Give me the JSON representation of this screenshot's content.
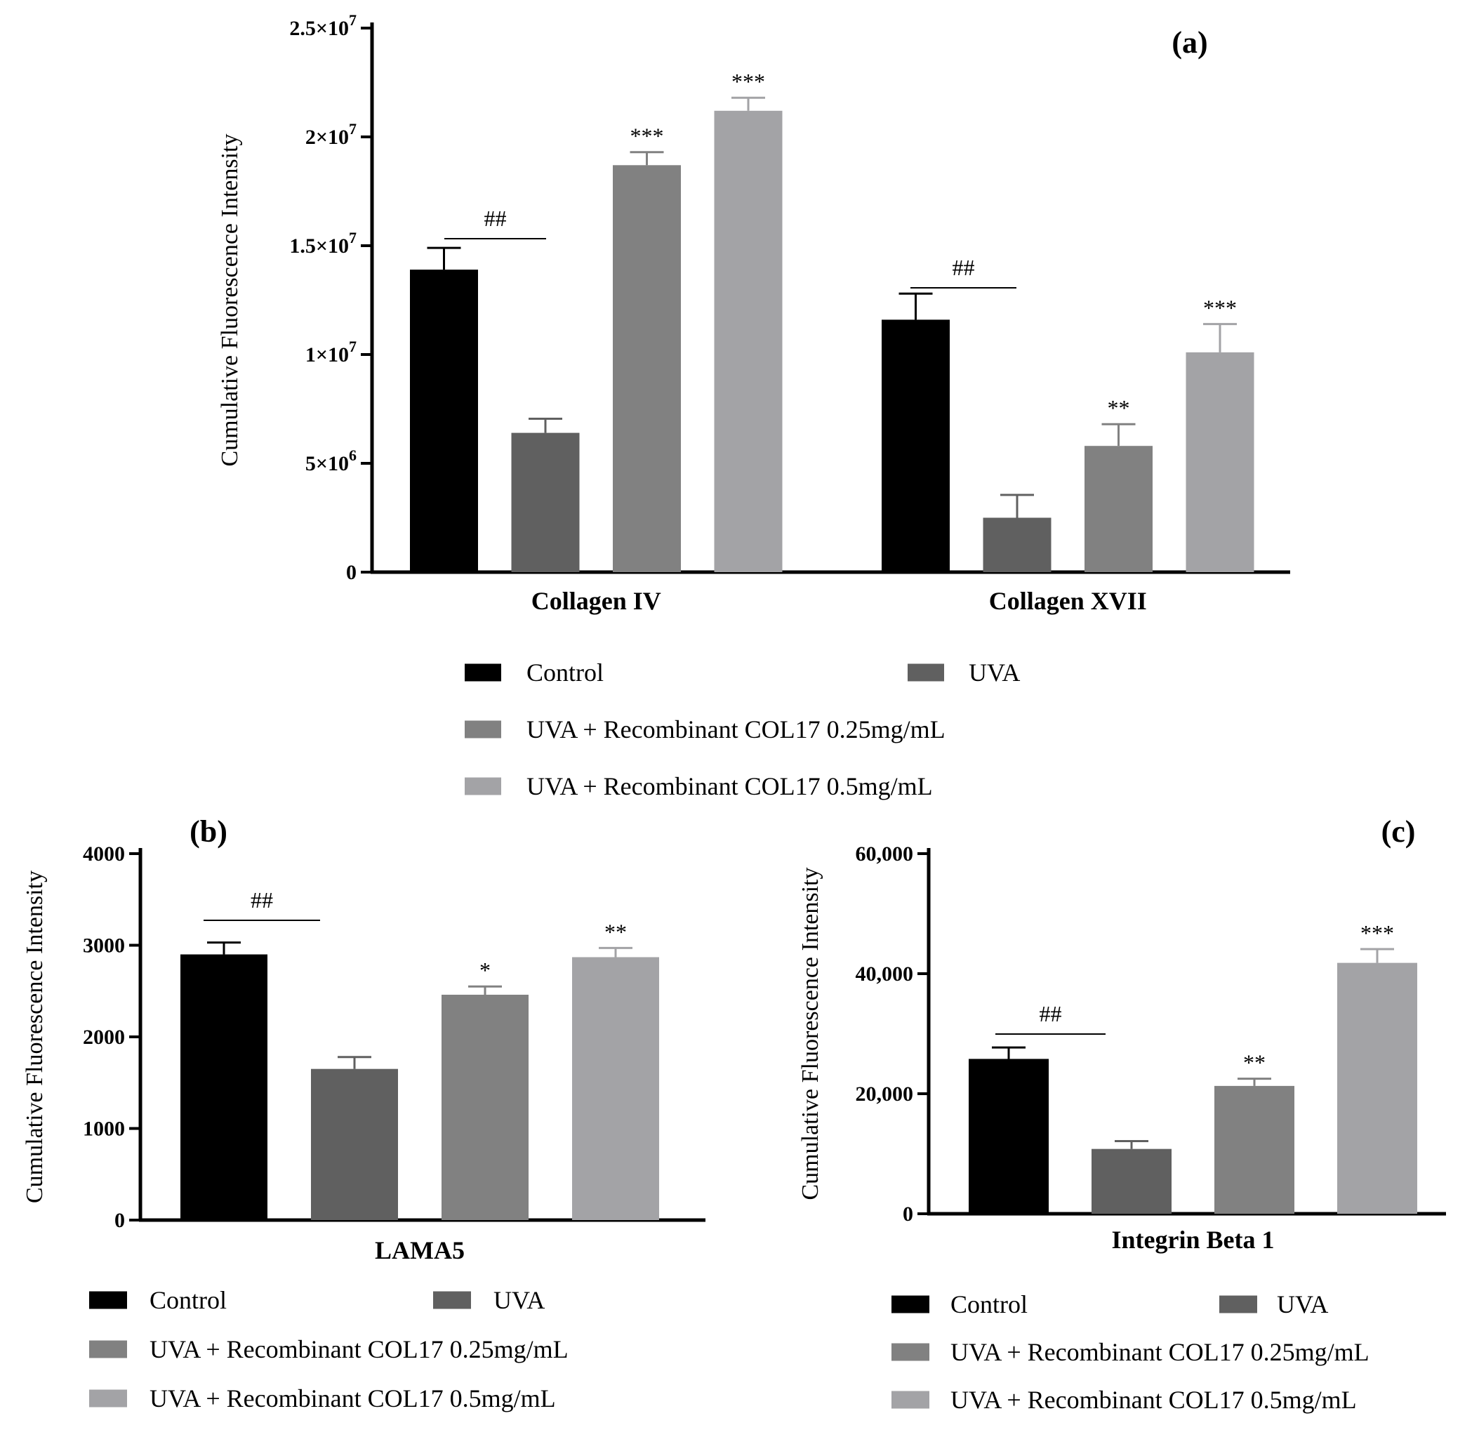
{
  "colors": {
    "control": "#000000",
    "uva": "#606060",
    "low": "#818181",
    "high": "#a3a3a6"
  },
  "legend": {
    "a": [
      "Control",
      "UVA",
      "UVA  + Recombinant COL17 0.25mg/mL",
      "UVA + Recombinant COL17 0.5mg/mL"
    ],
    "b": [
      "Control",
      "UVA",
      "UVA + Recombinant COL17  0.25mg/mL",
      "UVA + Recombinant COL17 0.5mg/mL"
    ],
    "c": [
      "Control",
      "UVA",
      "UVA + Recombinant COL17 0.25mg/mL",
      "UVA + Recombinant COL17 0.5mg/mL"
    ]
  },
  "chart_data": [
    {
      "type": "bar",
      "panel_label": "(a)",
      "ylabel": "Cumulative Fluorescence Intensity",
      "ylim": [
        0,
        25000000
      ],
      "yticks": [
        0,
        5000000,
        10000000,
        15000000,
        20000000,
        25000000
      ],
      "ytick_labels": [
        {
          "base": "0",
          "exp": ""
        },
        {
          "base": "5×10",
          "exp": "6"
        },
        {
          "base": "1×10",
          "exp": "7"
        },
        {
          "base": "1.5×10",
          "exp": "7"
        },
        {
          "base": "2×10",
          "exp": "7"
        },
        {
          "base": "2.5×10",
          "exp": "7"
        }
      ],
      "categories": [
        "Collagen IV",
        "Collagen XVII"
      ],
      "series": [
        {
          "name": "Control",
          "values": [
            13900000,
            11600000
          ],
          "errors": [
            1000000,
            1200000
          ],
          "significance": [
            "",
            ""
          ]
        },
        {
          "name": "UVA",
          "values": [
            6400000,
            2500000
          ],
          "errors": [
            650000,
            1050000
          ],
          "significance": [
            "",
            ""
          ]
        },
        {
          "name": "UVA + Recombinant COL17 0.25mg/mL",
          "values": [
            18700000,
            5800000
          ],
          "errors": [
            600000,
            1000000
          ],
          "significance": [
            "***",
            "**"
          ]
        },
        {
          "name": "UVA + Recombinant COL17 0.5mg/mL",
          "values": [
            21200000,
            10100000
          ],
          "errors": [
            600000,
            1300000
          ],
          "significance": [
            "***",
            "***"
          ]
        }
      ],
      "comparisons": [
        {
          "label": "##"
        },
        {
          "label": "##"
        }
      ]
    },
    {
      "type": "bar",
      "panel_label": "(b)",
      "ylabel": "Cumulative Fluorescence Intensity",
      "ylim": [
        0,
        4000
      ],
      "yticks": [
        0,
        1000,
        2000,
        3000,
        4000
      ],
      "ytick_labels": [
        {
          "base": "0",
          "exp": ""
        },
        {
          "base": "1000",
          "exp": ""
        },
        {
          "base": "2000",
          "exp": ""
        },
        {
          "base": "3000",
          "exp": ""
        },
        {
          "base": "4000",
          "exp": ""
        }
      ],
      "categories": [
        "LAMA5"
      ],
      "series": [
        {
          "name": "Control",
          "values": [
            2900
          ],
          "errors": [
            130
          ],
          "significance": [
            ""
          ]
        },
        {
          "name": "UVA",
          "values": [
            1650
          ],
          "errors": [
            130
          ],
          "significance": [
            ""
          ]
        },
        {
          "name": "UVA + Recombinant COL17 0.25mg/mL",
          "values": [
            2460
          ],
          "errors": [
            90
          ],
          "significance": [
            "*"
          ]
        },
        {
          "name": "UVA + Recombinant COL17 0.5mg/mL",
          "values": [
            2870
          ],
          "errors": [
            100
          ],
          "significance": [
            "**"
          ]
        }
      ],
      "comparisons": [
        {
          "label": "##"
        }
      ]
    },
    {
      "type": "bar",
      "panel_label": "(c)",
      "ylabel": "Cumulative Fluorescence Intensity",
      "ylim": [
        0,
        60000
      ],
      "yticks": [
        0,
        20000,
        40000,
        60000
      ],
      "ytick_labels": [
        {
          "base": "0",
          "exp": ""
        },
        {
          "base": "20,000",
          "exp": ""
        },
        {
          "base": "40,000",
          "exp": ""
        },
        {
          "base": "60,000",
          "exp": ""
        }
      ],
      "categories": [
        "Integrin Beta 1"
      ],
      "series": [
        {
          "name": "Control",
          "values": [
            25800
          ],
          "errors": [
            1900
          ],
          "significance": [
            ""
          ]
        },
        {
          "name": "UVA",
          "values": [
            10800
          ],
          "errors": [
            1300
          ],
          "significance": [
            ""
          ]
        },
        {
          "name": "UVA + Recombinant COL17 0.25mg/mL",
          "values": [
            21300
          ],
          "errors": [
            1200
          ],
          "significance": [
            "**"
          ]
        },
        {
          "name": "UVA + Recombinant COL17 0.5mg/mL",
          "values": [
            41800
          ],
          "errors": [
            2300
          ],
          "significance": [
            "***"
          ]
        }
      ],
      "comparisons": [
        {
          "label": "##"
        }
      ]
    }
  ]
}
